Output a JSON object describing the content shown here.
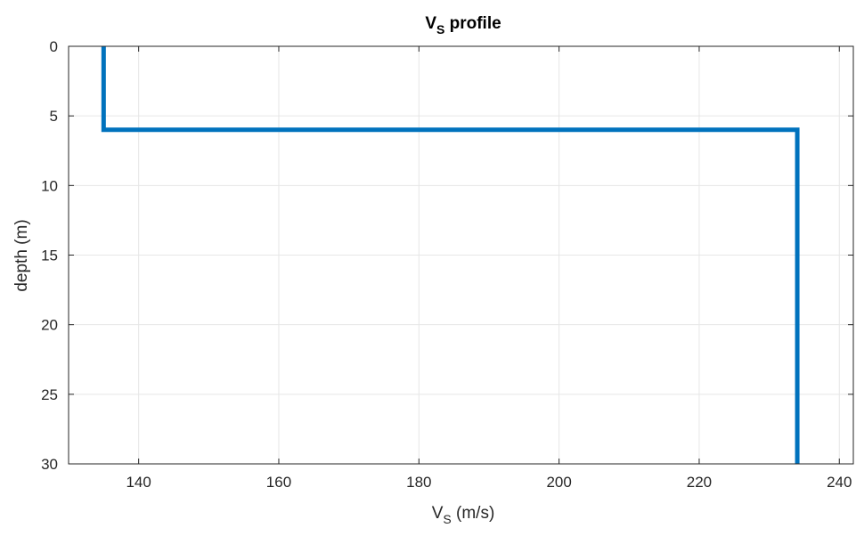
{
  "colors": {
    "series": "#0072BD",
    "grid": "#e6e6e6",
    "axis": "#262626",
    "background": "#ffffff"
  },
  "chart_data": {
    "type": "line",
    "title": {
      "main": "V",
      "sub": "S",
      "rest": " profile"
    },
    "xlabel": {
      "main": "V",
      "sub": "S",
      "rest": " (m/s)"
    },
    "ylabel": "depth (m)",
    "xlim": [
      130,
      242
    ],
    "ylim": [
      0,
      30
    ],
    "y_reversed": true,
    "grid": true,
    "xticks": [
      140,
      160,
      180,
      200,
      220,
      240
    ],
    "xtick_labels": [
      "140",
      "160",
      "180",
      "200",
      "220",
      "240"
    ],
    "yticks": [
      0,
      5,
      10,
      15,
      20,
      25,
      30
    ],
    "ytick_labels": [
      "0",
      "5",
      "10",
      "15",
      "20",
      "25",
      "30"
    ],
    "series": [
      {
        "x": [
          135,
          135,
          234,
          234
        ],
        "y": [
          0,
          6,
          6,
          30
        ]
      }
    ]
  }
}
